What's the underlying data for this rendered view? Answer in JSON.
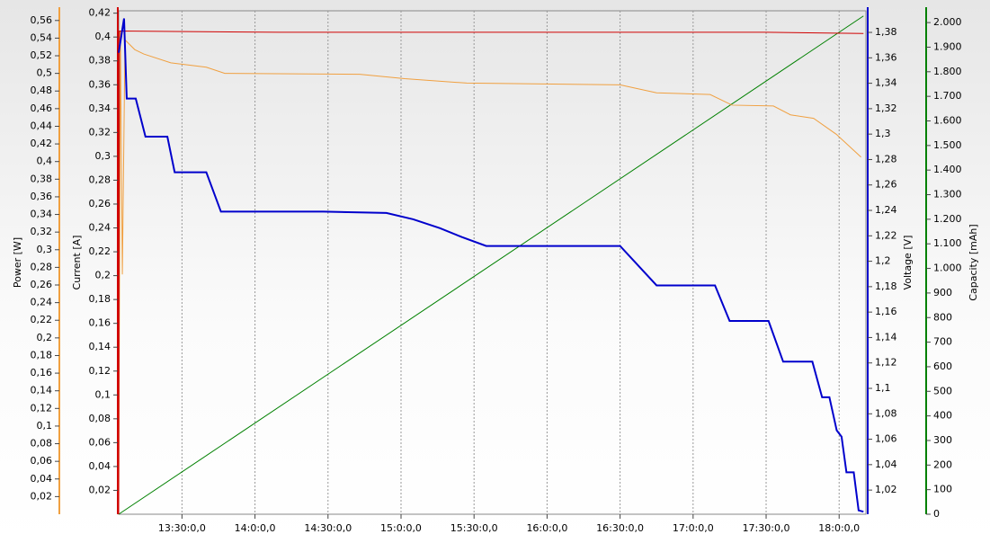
{
  "chart_data": {
    "type": "line",
    "xlim": [
      784,
      1091
    ],
    "xticks": [
      {
        "value": 810,
        "label": "13:30:0,0"
      },
      {
        "value": 840,
        "label": "14:0:0,0"
      },
      {
        "value": 870,
        "label": "14:30:0,0"
      },
      {
        "value": 900,
        "label": "15:0:0,0"
      },
      {
        "value": 930,
        "label": "15:30:0,0"
      },
      {
        "value": 960,
        "label": "16:0:0,0"
      },
      {
        "value": 990,
        "label": "16:30:0,0"
      },
      {
        "value": 1020,
        "label": "17:0:0,0"
      },
      {
        "value": 1050,
        "label": "17:30:0,0"
      },
      {
        "value": 1080,
        "label": "18:0:0,0"
      }
    ],
    "grid": true,
    "axes": [
      {
        "id": "power",
        "label": "Power [W]",
        "color": "#f0a040",
        "lim": [
          0,
          0.571
        ],
        "ticks": [
          {
            "value": 0.02,
            "label": "0,02"
          },
          {
            "value": 0.04,
            "label": "0,04"
          },
          {
            "value": 0.06,
            "label": "0,06"
          },
          {
            "value": 0.08,
            "label": "0,08"
          },
          {
            "value": 0.1,
            "label": "0,1"
          },
          {
            "value": 0.12,
            "label": "0,12"
          },
          {
            "value": 0.14,
            "label": "0,14"
          },
          {
            "value": 0.16,
            "label": "0,16"
          },
          {
            "value": 0.18,
            "label": "0,18"
          },
          {
            "value": 0.2,
            "label": "0,2"
          },
          {
            "value": 0.22,
            "label": "0,22"
          },
          {
            "value": 0.24,
            "label": "0,24"
          },
          {
            "value": 0.26,
            "label": "0,26"
          },
          {
            "value": 0.28,
            "label": "0,28"
          },
          {
            "value": 0.3,
            "label": "0,3"
          },
          {
            "value": 0.32,
            "label": "0,32"
          },
          {
            "value": 0.34,
            "label": "0,34"
          },
          {
            "value": 0.36,
            "label": "0,36"
          },
          {
            "value": 0.38,
            "label": "0,38"
          },
          {
            "value": 0.4,
            "label": "0,4"
          },
          {
            "value": 0.42,
            "label": "0,42"
          },
          {
            "value": 0.44,
            "label": "0,44"
          },
          {
            "value": 0.46,
            "label": "0,46"
          },
          {
            "value": 0.48,
            "label": "0,48"
          },
          {
            "value": 0.5,
            "label": "0,5"
          },
          {
            "value": 0.52,
            "label": "0,52"
          },
          {
            "value": 0.54,
            "label": "0,54"
          },
          {
            "value": 0.56,
            "label": "0,56"
          }
        ]
      },
      {
        "id": "current",
        "label": "Current [A]",
        "color": "#d00000",
        "lim": [
          0,
          0.422
        ],
        "ticks": [
          {
            "value": 0.02,
            "label": "0,02"
          },
          {
            "value": 0.04,
            "label": "0,04"
          },
          {
            "value": 0.06,
            "label": "0,06"
          },
          {
            "value": 0.08,
            "label": "0,08"
          },
          {
            "value": 0.1,
            "label": "0,1"
          },
          {
            "value": 0.12,
            "label": "0,12"
          },
          {
            "value": 0.14,
            "label": "0,14"
          },
          {
            "value": 0.16,
            "label": "0,16"
          },
          {
            "value": 0.18,
            "label": "0,18"
          },
          {
            "value": 0.2,
            "label": "0,2"
          },
          {
            "value": 0.22,
            "label": "0,22"
          },
          {
            "value": 0.24,
            "label": "0,24"
          },
          {
            "value": 0.26,
            "label": "0,26"
          },
          {
            "value": 0.28,
            "label": "0,28"
          },
          {
            "value": 0.3,
            "label": "0,3"
          },
          {
            "value": 0.32,
            "label": "0,32"
          },
          {
            "value": 0.34,
            "label": "0,34"
          },
          {
            "value": 0.36,
            "label": "0,36"
          },
          {
            "value": 0.38,
            "label": "0,38"
          },
          {
            "value": 0.4,
            "label": "0,4"
          },
          {
            "value": 0.42,
            "label": "0,42"
          }
        ]
      },
      {
        "id": "voltage",
        "label": "Voltage [V]",
        "color": "#0000cc",
        "lim": [
          1.001,
          1.397
        ],
        "ticks": [
          {
            "value": 1.02,
            "label": "1,02"
          },
          {
            "value": 1.04,
            "label": "1,04"
          },
          {
            "value": 1.06,
            "label": "1,06"
          },
          {
            "value": 1.08,
            "label": "1,08"
          },
          {
            "value": 1.1,
            "label": "1,1"
          },
          {
            "value": 1.12,
            "label": "1,12"
          },
          {
            "value": 1.14,
            "label": "1,14"
          },
          {
            "value": 1.16,
            "label": "1,16"
          },
          {
            "value": 1.18,
            "label": "1,18"
          },
          {
            "value": 1.2,
            "label": "1,2"
          },
          {
            "value": 1.22,
            "label": "1,22"
          },
          {
            "value": 1.24,
            "label": "1,24"
          },
          {
            "value": 1.26,
            "label": "1,26"
          },
          {
            "value": 1.28,
            "label": "1,28"
          },
          {
            "value": 1.3,
            "label": "1,3"
          },
          {
            "value": 1.32,
            "label": "1,32"
          },
          {
            "value": 1.34,
            "label": "1,34"
          },
          {
            "value": 1.36,
            "label": "1,36"
          },
          {
            "value": 1.38,
            "label": "1,38"
          }
        ]
      },
      {
        "id": "capacity",
        "label": "Capacity [mAh]",
        "color": "#008000",
        "lim": [
          0,
          2048
        ],
        "ticks": [
          0,
          100,
          200,
          300,
          400,
          500,
          600,
          700,
          800,
          900,
          {
            "value": 1000,
            "label": "1.000"
          },
          {
            "value": 1100,
            "label": "1.100"
          },
          {
            "value": 1200,
            "label": "1.200"
          },
          {
            "value": 1300,
            "label": "1.300"
          },
          {
            "value": 1400,
            "label": "1.400"
          },
          {
            "value": 1500,
            "label": "1.500"
          },
          {
            "value": 1600,
            "label": "1.600"
          },
          {
            "value": 1700,
            "label": "1.700"
          },
          {
            "value": 1800,
            "label": "1.800"
          },
          {
            "value": 1900,
            "label": "1.900"
          },
          {
            "value": 2000,
            "label": "2.000"
          }
        ]
      }
    ],
    "series": [
      {
        "axis": "capacity",
        "color": "#008000",
        "x": [
          784,
          1090
        ],
        "values": [
          0,
          2027
        ]
      },
      {
        "axis": "power",
        "color": "#f0a040",
        "x": [
          784,
          784.7,
          785.5,
          786.6,
          790.6,
          794.3,
          805.4,
          820,
          827.6,
          883,
          901.5,
          927,
          990,
          1005,
          1027,
          1036,
          1053,
          1060,
          1069.5,
          1078.8,
          1089
        ],
        "values": [
          0,
          0.548,
          0.272,
          0.538,
          0.527,
          0.522,
          0.512,
          0.507,
          0.5,
          0.499,
          0.494,
          0.489,
          0.487,
          0.478,
          0.476,
          0.464,
          0.463,
          0.453,
          0.449,
          0.431,
          0.405
        ]
      },
      {
        "axis": "current",
        "color": "#d00000",
        "x": [
          784,
          784.3,
          850,
          950,
          1050,
          1090
        ],
        "values": [
          0,
          0.405,
          0.404,
          0.404,
          0.404,
          0.403
        ]
      },
      {
        "axis": "voltage",
        "color": "#0000cc",
        "x": [
          784,
          786.2,
          787.3,
          791,
          795,
          804,
          807,
          820,
          826,
          868,
          894,
          905,
          916,
          925,
          935,
          990,
          1005,
          1029,
          1035,
          1051,
          1057,
          1069,
          1073,
          1076,
          1079,
          1081,
          1083,
          1086,
          1088,
          1090
        ],
        "values": [
          1.364,
          1.391,
          1.328,
          1.328,
          1.298,
          1.298,
          1.27,
          1.27,
          1.239,
          1.239,
          1.238,
          1.233,
          1.226,
          1.219,
          1.212,
          1.212,
          1.181,
          1.181,
          1.153,
          1.153,
          1.121,
          1.121,
          1.093,
          1.093,
          1.067,
          1.062,
          1.034,
          1.034,
          1.004,
          1.003
        ]
      }
    ]
  }
}
